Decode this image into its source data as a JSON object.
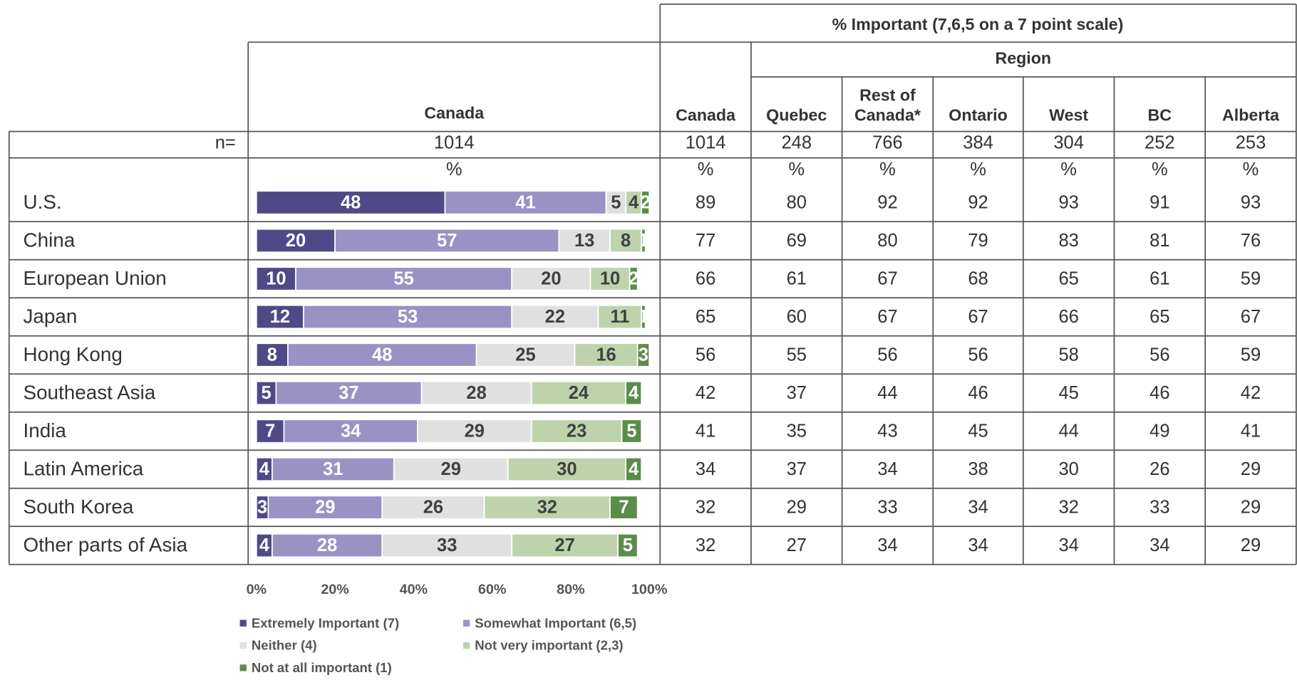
{
  "chart_data": {
    "type": "bar",
    "orientation": "horizontal",
    "stacked": true,
    "categories": [
      "U.S.",
      "China",
      "European Union",
      "Japan",
      "Hong Kong",
      "Southeast Asia",
      "India",
      "Latin America",
      "South Korea",
      "Other parts of Asia"
    ],
    "series": [
      {
        "name": "Extremely Important (7)",
        "color": "#4f4a87",
        "label_color": "#ffffff",
        "values": [
          48,
          20,
          10,
          12,
          8,
          5,
          7,
          4,
          3,
          4
        ]
      },
      {
        "name": "Somewhat Important (6,5)",
        "color": "#9a92c4",
        "label_color": "#ffffff",
        "values": [
          41,
          57,
          55,
          53,
          48,
          37,
          34,
          31,
          29,
          28
        ]
      },
      {
        "name": "Neither (4)",
        "color": "#e0e0e0",
        "label_color": "#404040",
        "values": [
          5,
          13,
          20,
          22,
          25,
          28,
          29,
          29,
          26,
          33
        ]
      },
      {
        "name": "Not very important (2,3)",
        "color": "#bed3ab",
        "label_color": "#404040",
        "values": [
          4,
          8,
          10,
          11,
          16,
          24,
          23,
          30,
          32,
          27
        ]
      },
      {
        "name": "Not at all important (1)",
        "color": "#5b8c4a",
        "label_color": "#ffffff",
        "values": [
          2,
          1,
          2,
          1,
          3,
          4,
          5,
          4,
          7,
          5
        ]
      }
    ],
    "xlim": [
      0,
      100
    ],
    "xticks": [
      {
        "value": 0,
        "label": "0%"
      },
      {
        "value": 20,
        "label": "20%"
      },
      {
        "value": 40,
        "label": "40%"
      },
      {
        "value": 60,
        "label": "60%"
      },
      {
        "value": 80,
        "label": "80%"
      },
      {
        "value": 100,
        "label": "100%"
      }
    ]
  },
  "table": {
    "title": "% Important (7,6,5 on a 7 point scale)",
    "group_label": "Region",
    "chart_header": "Canada",
    "columns": [
      "Canada",
      "Quebec",
      "Rest of Canada*",
      "Ontario",
      "West",
      "BC",
      "Alberta"
    ],
    "n_label": "n=",
    "chart_n": 1014,
    "n": [
      1014,
      248,
      766,
      384,
      304,
      252,
      253
    ],
    "chart_unit": "%",
    "units": [
      "%",
      "%",
      "%",
      "%",
      "%",
      "%",
      "%"
    ],
    "rows": [
      [
        89,
        80,
        92,
        92,
        93,
        91,
        93
      ],
      [
        77,
        69,
        80,
        79,
        83,
        81,
        76
      ],
      [
        66,
        61,
        67,
        68,
        65,
        61,
        59
      ],
      [
        65,
        60,
        67,
        67,
        66,
        65,
        67
      ],
      [
        56,
        55,
        56,
        56,
        58,
        56,
        59
      ],
      [
        42,
        37,
        44,
        46,
        45,
        46,
        42
      ],
      [
        41,
        35,
        43,
        45,
        44,
        49,
        41
      ],
      [
        34,
        37,
        34,
        38,
        30,
        26,
        29
      ],
      [
        32,
        29,
        33,
        34,
        32,
        33,
        29
      ],
      [
        32,
        27,
        34,
        34,
        34,
        34,
        29
      ]
    ]
  }
}
